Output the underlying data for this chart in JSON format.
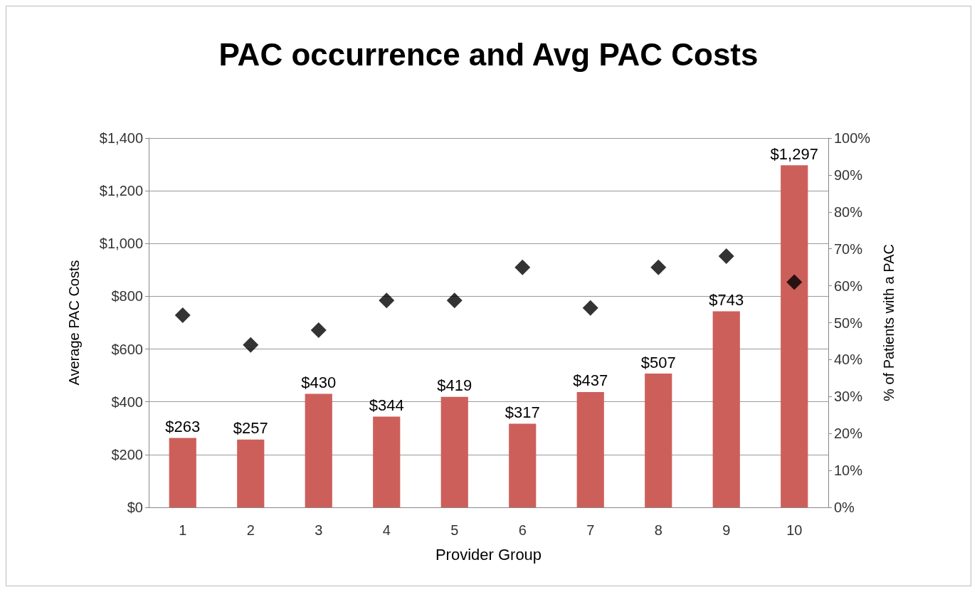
{
  "chart_data": {
    "type": "bar",
    "title": "PAC occurrence and Avg PAC Costs",
    "xlabel": "Provider Group",
    "ylabel": "Average PAC Costs",
    "y2label": "% of Patients with a PAC",
    "categories": [
      "1",
      "2",
      "3",
      "4",
      "5",
      "6",
      "7",
      "8",
      "9",
      "10"
    ],
    "series": [
      {
        "color": "#cd5f5b",
        "values": [
          263,
          257,
          430,
          344,
          419,
          317,
          437,
          507,
          743,
          1297
        ],
        "value_labels": [
          "$263",
          "$257",
          "$430",
          "$344",
          "$419",
          "$317",
          "$437",
          "$507",
          "$743",
          "$1,297"
        ]
      },
      {
        "type": "scatter",
        "axis": "y2",
        "color": "#000000",
        "values": [
          52,
          44,
          48,
          56,
          56,
          65,
          54,
          65,
          68,
          61
        ]
      }
    ],
    "ylim": [
      0,
      1400
    ],
    "yticks": [
      {
        "value": 0,
        "label": "$0"
      },
      {
        "value": 200,
        "label": "$200"
      },
      {
        "value": 400,
        "label": "$400"
      },
      {
        "value": 600,
        "label": "$600"
      },
      {
        "value": 800,
        "label": "$800"
      },
      {
        "value": 1000,
        "label": "$1,000"
      },
      {
        "value": 1200,
        "label": "$1,200"
      },
      {
        "value": 1400,
        "label": "$1,400"
      }
    ],
    "y2lim": [
      0,
      100
    ],
    "y2ticks": [
      {
        "value": 0,
        "label": "0%"
      },
      {
        "value": 10,
        "label": "10%"
      },
      {
        "value": 20,
        "label": "20%"
      },
      {
        "value": 30,
        "label": "30%"
      },
      {
        "value": 40,
        "label": "40%"
      },
      {
        "value": 50,
        "label": "50%"
      },
      {
        "value": 60,
        "label": "60%"
      },
      {
        "value": 70,
        "label": "70%"
      },
      {
        "value": 80,
        "label": "80%"
      },
      {
        "value": 90,
        "label": "90%"
      },
      {
        "value": 100,
        "label": "100%"
      }
    ],
    "grid": "y",
    "marker": "diamond"
  }
}
